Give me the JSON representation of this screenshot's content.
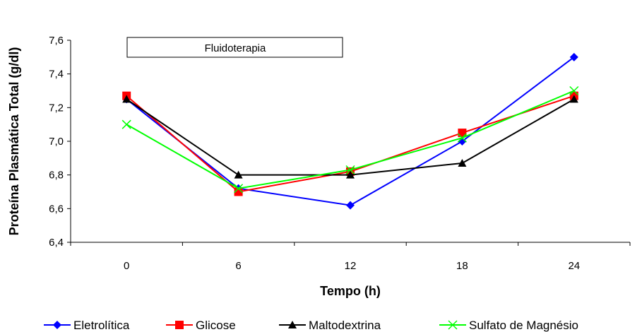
{
  "chart_data": {
    "type": "line",
    "xlabel": "Tempo (h)",
    "ylabel": "Proteína Plasmática Total (g/dl)",
    "x": [
      "0",
      "6",
      "12",
      "18",
      "24"
    ],
    "ylim": [
      6.4,
      7.6
    ],
    "yticks": [
      "6,4",
      "6,6",
      "6,8",
      "7,0",
      "7,2",
      "7,4",
      "7,6"
    ],
    "annotation": "Fluidoterapia",
    "legend_position": "bottom",
    "grid": false,
    "series": [
      {
        "name": "Eletrolítica",
        "values": [
          7.25,
          6.72,
          6.62,
          7.0,
          7.5
        ],
        "color": "#0000ff",
        "marker": "diamond"
      },
      {
        "name": "Glicose",
        "values": [
          7.27,
          6.7,
          6.82,
          7.05,
          7.27
        ],
        "color": "#ff0000",
        "marker": "square"
      },
      {
        "name": "Maltodextrina",
        "values": [
          7.25,
          6.8,
          6.8,
          6.87,
          7.25
        ],
        "color": "#000000",
        "marker": "triangle"
      },
      {
        "name": "Sulfato de Magnésio",
        "values": [
          7.1,
          6.72,
          6.83,
          7.02,
          7.3
        ],
        "color": "#00ff00",
        "marker": "x"
      }
    ]
  }
}
